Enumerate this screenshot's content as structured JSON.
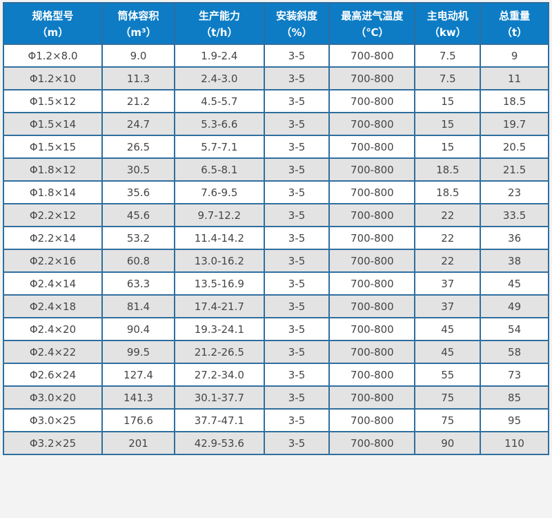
{
  "colors": {
    "page_bg": "#f3f3f3",
    "border": "#2e6e9e",
    "header_bg": "#0d7cc5",
    "header_text": "#ffffff",
    "row_bg": "#ffffff",
    "row_alt_bg": "#e3e3e3",
    "body_text": "#454545"
  },
  "table": {
    "columns": [
      {
        "title": "规格型号",
        "unit": "（m）"
      },
      {
        "title": "筒体容积",
        "unit": "（m³）"
      },
      {
        "title": "生产能力",
        "unit": "（t/h）"
      },
      {
        "title": "安装斜度",
        "unit": "（%）"
      },
      {
        "title": "最高进气温度",
        "unit": "（℃）"
      },
      {
        "title": "主电动机",
        "unit": "（kw）"
      },
      {
        "title": "总重量",
        "unit": "（t）"
      }
    ],
    "rows": [
      [
        "Φ1.2×8.0",
        "9.0",
        "1.9-2.4",
        "3-5",
        "700-800",
        "7.5",
        "9"
      ],
      [
        "Φ1.2×10",
        "11.3",
        "2.4-3.0",
        "3-5",
        "700-800",
        "7.5",
        "11"
      ],
      [
        "Φ1.5×12",
        "21.2",
        "4.5-5.7",
        "3-5",
        "700-800",
        "15",
        "18.5"
      ],
      [
        "Φ1.5×14",
        "24.7",
        "5.3-6.6",
        "3-5",
        "700-800",
        "15",
        "19.7"
      ],
      [
        "Φ1.5×15",
        "26.5",
        "5.7-7.1",
        "3-5",
        "700-800",
        "15",
        "20.5"
      ],
      [
        "Φ1.8×12",
        "30.5",
        "6.5-8.1",
        "3-5",
        "700-800",
        "18.5",
        "21.5"
      ],
      [
        "Φ1.8×14",
        "35.6",
        "7.6-9.5",
        "3-5",
        "700-800",
        "18.5",
        "23"
      ],
      [
        "Φ2.2×12",
        "45.6",
        "9.7-12.2",
        "3-5",
        "700-800",
        "22",
        "33.5"
      ],
      [
        "Φ2.2×14",
        "53.2",
        "11.4-14.2",
        "3-5",
        "700-800",
        "22",
        "36"
      ],
      [
        "Φ2.2×16",
        "60.8",
        "13.0-16.2",
        "3-5",
        "700-800",
        "22",
        "38"
      ],
      [
        "Φ2.4×14",
        "63.3",
        "13.5-16.9",
        "3-5",
        "700-800",
        "37",
        "45"
      ],
      [
        "Φ2.4×18",
        "81.4",
        "17.4-21.7",
        "3-5",
        "700-800",
        "37",
        "49"
      ],
      [
        "Φ2.4×20",
        "90.4",
        "19.3-24.1",
        "3-5",
        "700-800",
        "45",
        "54"
      ],
      [
        "Φ2.4×22",
        "99.5",
        "21.2-26.5",
        "3-5",
        "700-800",
        "45",
        "58"
      ],
      [
        "Φ2.6×24",
        "127.4",
        "27.2-34.0",
        "3-5",
        "700-800",
        "55",
        "73"
      ],
      [
        "Φ3.0×20",
        "141.3",
        "30.1-37.7",
        "3-5",
        "700-800",
        "75",
        "85"
      ],
      [
        "Φ3.0×25",
        "176.6",
        "37.7-47.1",
        "3-5",
        "700-800",
        "75",
        "95"
      ],
      [
        "Φ3.2×25",
        "201",
        "42.9-53.6",
        "3-5",
        "700-800",
        "90",
        "110"
      ]
    ]
  }
}
